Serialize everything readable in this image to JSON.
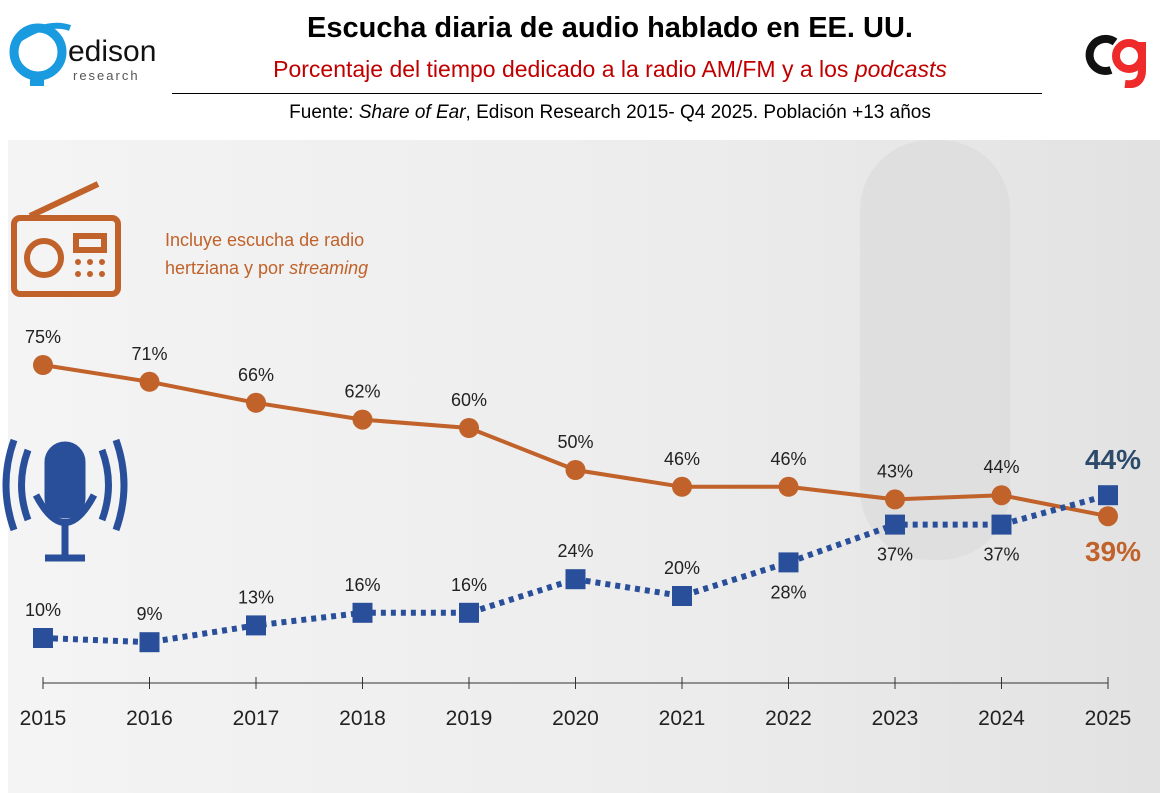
{
  "header": {
    "title": "Escucha diaria de audio hablado en EE. UU.",
    "subtitle_plain": "Porcentaje del tiempo dedicado a la radio AM/FM y a los ",
    "subtitle_italic": "podcasts",
    "source_prefix": "Fuente: ",
    "source_italic": "Share of Ear",
    "source_rest": ", Edison Research 2015- Q4 2025. Población  +13 años",
    "logo_left": {
      "word": "edison",
      "sub": "research"
    },
    "logo_right": "cg"
  },
  "annotation": {
    "line1": "Incluye escucha de radio",
    "line2_plain": "hertziana y por ",
    "line2_italic": "streaming"
  },
  "chart_data": {
    "type": "line",
    "title": "Escucha diaria de audio hablado en EE. UU.",
    "categories": [
      "2015",
      "2016",
      "2017",
      "2018",
      "2019",
      "2020",
      "2021",
      "2022",
      "2023",
      "2024",
      "2025"
    ],
    "ylim": [
      0,
      100
    ],
    "grid": false,
    "series": [
      {
        "name": "Radio AM/FM",
        "color": "#c0622a",
        "values": [
          75,
          71,
          66,
          62,
          60,
          50,
          46,
          46,
          43,
          44,
          39
        ],
        "labels": [
          "75%",
          "71%",
          "66%",
          "62%",
          "60%",
          "50%",
          "46%",
          "46%",
          "43%",
          "44%",
          "39%"
        ]
      },
      {
        "name": "Podcasts",
        "color": "#2a4f9a",
        "values": [
          10,
          9,
          13,
          16,
          16,
          24,
          20,
          28,
          37,
          37,
          44
        ],
        "labels": [
          "10%",
          "9%",
          "13%",
          "16%",
          "16%",
          "24%",
          "20%",
          "28%",
          "37%",
          "37%",
          "44%"
        ]
      }
    ]
  }
}
